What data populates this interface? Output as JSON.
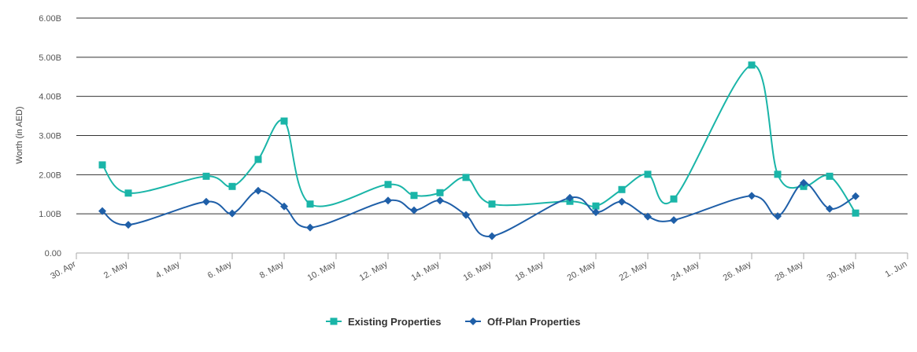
{
  "chart_data": {
    "type": "line",
    "ylabel": "Worth (in AED)",
    "xlabel": "",
    "title": "",
    "x_range": [
      "2024-04-30",
      "2024-06-01"
    ],
    "ylim": [
      0,
      6
    ],
    "y_ticks": [
      {
        "value": 0,
        "label": "0.00"
      },
      {
        "value": 1,
        "label": "1.00B"
      },
      {
        "value": 2,
        "label": "2.00B"
      },
      {
        "value": 3,
        "label": "3.00B"
      },
      {
        "value": 4,
        "label": "4.00B"
      },
      {
        "value": 5,
        "label": "5.00B"
      },
      {
        "value": 6,
        "label": "6.00B"
      }
    ],
    "x_ticks": [
      {
        "date": "2024-04-30",
        "label": "30. Apr"
      },
      {
        "date": "2024-05-02",
        "label": "2. May"
      },
      {
        "date": "2024-05-04",
        "label": "4. May"
      },
      {
        "date": "2024-05-06",
        "label": "6. May"
      },
      {
        "date": "2024-05-08",
        "label": "8. May"
      },
      {
        "date": "2024-05-10",
        "label": "10. May"
      },
      {
        "date": "2024-05-12",
        "label": "12. May"
      },
      {
        "date": "2024-05-14",
        "label": "14. May"
      },
      {
        "date": "2024-05-16",
        "label": "16. May"
      },
      {
        "date": "2024-05-18",
        "label": "18. May"
      },
      {
        "date": "2024-05-20",
        "label": "20. May"
      },
      {
        "date": "2024-05-22",
        "label": "22. May"
      },
      {
        "date": "2024-05-24",
        "label": "24. May"
      },
      {
        "date": "2024-05-26",
        "label": "26. May"
      },
      {
        "date": "2024-05-28",
        "label": "28. May"
      },
      {
        "date": "2024-05-30",
        "label": "30. May"
      },
      {
        "date": "2024-06-01",
        "label": "1. Jun"
      }
    ],
    "grid": true,
    "legend_position": "bottom-center",
    "series": [
      {
        "name": "Existing Properties",
        "color": "#1ab5a8",
        "marker": "square",
        "points": [
          {
            "x": "2024-05-01",
            "y": 2.25
          },
          {
            "x": "2024-05-02",
            "y": 1.53
          },
          {
            "x": "2024-05-05",
            "y": 1.96
          },
          {
            "x": "2024-05-06",
            "y": 1.7
          },
          {
            "x": "2024-05-07",
            "y": 2.39
          },
          {
            "x": "2024-05-08",
            "y": 3.37
          },
          {
            "x": "2024-05-09",
            "y": 1.25
          },
          {
            "x": "2024-05-12",
            "y": 1.75
          },
          {
            "x": "2024-05-13",
            "y": 1.47
          },
          {
            "x": "2024-05-14",
            "y": 1.54
          },
          {
            "x": "2024-05-15",
            "y": 1.93
          },
          {
            "x": "2024-05-16",
            "y": 1.25
          },
          {
            "x": "2024-05-19",
            "y": 1.32
          },
          {
            "x": "2024-05-20",
            "y": 1.2
          },
          {
            "x": "2024-05-21",
            "y": 1.62
          },
          {
            "x": "2024-05-22",
            "y": 2.01
          },
          {
            "x": "2024-05-23",
            "y": 1.38
          },
          {
            "x": "2024-05-26",
            "y": 4.8
          },
          {
            "x": "2024-05-27",
            "y": 2.01
          },
          {
            "x": "2024-05-28",
            "y": 1.7
          },
          {
            "x": "2024-05-29",
            "y": 1.96
          },
          {
            "x": "2024-05-30",
            "y": 1.02
          }
        ]
      },
      {
        "name": "Off-Plan Properties",
        "color": "#1f5fa8",
        "marker": "diamond",
        "points": [
          {
            "x": "2024-05-01",
            "y": 1.07
          },
          {
            "x": "2024-05-02",
            "y": 0.72
          },
          {
            "x": "2024-05-05",
            "y": 1.31
          },
          {
            "x": "2024-05-06",
            "y": 1.01
          },
          {
            "x": "2024-05-07",
            "y": 1.59
          },
          {
            "x": "2024-05-08",
            "y": 1.19
          },
          {
            "x": "2024-05-09",
            "y": 0.65
          },
          {
            "x": "2024-05-12",
            "y": 1.34
          },
          {
            "x": "2024-05-13",
            "y": 1.09
          },
          {
            "x": "2024-05-14",
            "y": 1.34
          },
          {
            "x": "2024-05-15",
            "y": 0.97
          },
          {
            "x": "2024-05-16",
            "y": 0.43
          },
          {
            "x": "2024-05-19",
            "y": 1.41
          },
          {
            "x": "2024-05-20",
            "y": 1.04
          },
          {
            "x": "2024-05-21",
            "y": 1.31
          },
          {
            "x": "2024-05-22",
            "y": 0.93
          },
          {
            "x": "2024-05-23",
            "y": 0.84
          },
          {
            "x": "2024-05-26",
            "y": 1.46
          },
          {
            "x": "2024-05-27",
            "y": 0.94
          },
          {
            "x": "2024-05-28",
            "y": 1.79
          },
          {
            "x": "2024-05-29",
            "y": 1.13
          },
          {
            "x": "2024-05-30",
            "y": 1.45
          }
        ]
      }
    ]
  }
}
